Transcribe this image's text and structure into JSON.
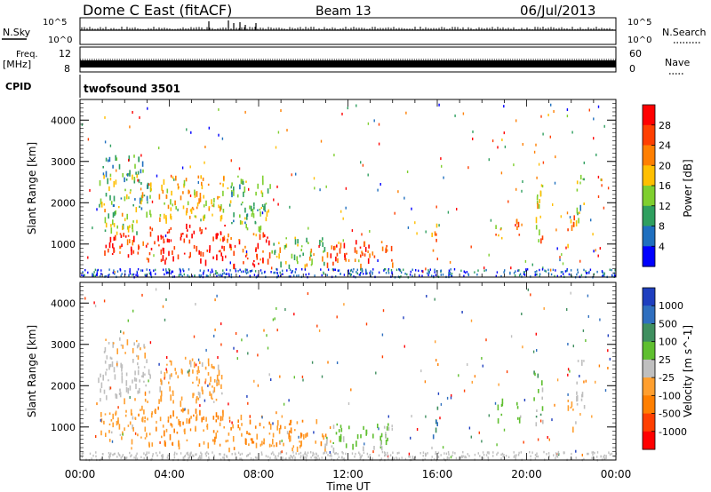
{
  "header": {
    "title": "Dome C East (fitACF)",
    "beam": "Beam 13",
    "date": "06/Jul/2013"
  },
  "sky_panel": {
    "left_label": "N.Sky",
    "left_ticks": [
      "10^5",
      "10^0"
    ],
    "right_label": "N.Search",
    "right_ticks": [
      "10^5",
      "10^0"
    ]
  },
  "freq_panel": {
    "left_label_1": "Freq.",
    "left_label_2": "[MHz]",
    "left_ticks": [
      "12",
      "8"
    ],
    "right_label": "Nave",
    "right_ticks": [
      "60",
      "0"
    ]
  },
  "cpid": {
    "label": "CPID",
    "program": "twofsound 3501"
  },
  "colors": {
    "power": [
      "#0000ff",
      "#1f6fbf",
      "#2f9f5f",
      "#7fcf2f",
      "#ffbf00",
      "#ff7f00",
      "#ff3f00",
      "#ff0000"
    ],
    "velocity": [
      "#1f3fbf",
      "#2f6fbf",
      "#3f8f5f",
      "#5fbf2f",
      "#bfbfbf",
      "#ff9f2f",
      "#ff7f00",
      "#ff3f00",
      "#ff0000"
    ]
  },
  "chart_data": [
    {
      "type": "heatmap",
      "name": "power",
      "xlabel": "Time UT",
      "ylabel": "Slant Range [km]",
      "x_ticks": [
        "00:00",
        "04:00",
        "08:00",
        "12:00",
        "16:00",
        "20:00",
        "00:00"
      ],
      "xlim": [
        0,
        24
      ],
      "ylim": [
        200,
        4500
      ],
      "y_ticks": [
        1000,
        2000,
        3000,
        4000
      ],
      "colorbar_label": "Power [dB]",
      "colorbar_ticks": [
        "28",
        "24",
        "20",
        "16",
        "12",
        "8",
        "4"
      ],
      "colorbar_range": [
        0,
        32
      ],
      "regions": [
        {
          "t": [
            0.9,
            3.0
          ],
          "r": [
            700,
            1300
          ],
          "v": [
            22,
            32
          ]
        },
        {
          "t": [
            0.9,
            3.0
          ],
          "r": [
            1300,
            1700
          ],
          "v": [
            10,
            20
          ]
        },
        {
          "t": [
            0.8,
            3.2
          ],
          "r": [
            1700,
            2700
          ],
          "v": [
            6,
            22
          ]
        },
        {
          "t": [
            1.0,
            3.0
          ],
          "r": [
            2700,
            3200
          ],
          "v": [
            4,
            16
          ]
        },
        {
          "t": [
            3.0,
            6.5
          ],
          "r": [
            600,
            1500
          ],
          "v": [
            24,
            32
          ]
        },
        {
          "t": [
            3.5,
            6.5
          ],
          "r": [
            1600,
            2700
          ],
          "v": [
            14,
            24
          ]
        },
        {
          "t": [
            6.5,
            8.5
          ],
          "r": [
            500,
            1300
          ],
          "v": [
            22,
            32
          ]
        },
        {
          "t": [
            6.5,
            8.5
          ],
          "r": [
            1400,
            2700
          ],
          "v": [
            6,
            18
          ]
        },
        {
          "t": [
            8.5,
            11.0
          ],
          "r": [
            500,
            1200
          ],
          "v": [
            8,
            22
          ]
        },
        {
          "t": [
            11.0,
            14.0
          ],
          "r": [
            500,
            1100
          ],
          "v": [
            20,
            30
          ]
        },
        {
          "t": [
            15.7,
            16.0
          ],
          "r": [
            800,
            1600
          ],
          "v": [
            16,
            28
          ]
        },
        {
          "t": [
            18.5,
            18.9
          ],
          "r": [
            1100,
            1700
          ],
          "v": [
            14,
            26
          ]
        },
        {
          "t": [
            19.5,
            19.8
          ],
          "r": [
            1000,
            1700
          ],
          "v": [
            16,
            28
          ]
        },
        {
          "t": [
            20.3,
            20.7
          ],
          "r": [
            1100,
            2500
          ],
          "v": [
            12,
            26
          ]
        },
        {
          "t": [
            21.8,
            22.2
          ],
          "r": [
            1000,
            1700
          ],
          "v": [
            14,
            28
          ]
        },
        {
          "t": [
            22.2,
            22.6
          ],
          "r": [
            1500,
            2700
          ],
          "v": [
            6,
            22
          ]
        }
      ]
    },
    {
      "type": "heatmap",
      "name": "velocity",
      "xlabel": "Time UT",
      "ylabel": "Slant Range [km]",
      "x_ticks": [
        "00:00",
        "04:00",
        "08:00",
        "12:00",
        "16:00",
        "20:00",
        "00:00"
      ],
      "xlim": [
        0,
        24
      ],
      "ylim": [
        200,
        4500
      ],
      "y_ticks": [
        1000,
        2000,
        3000,
        4000
      ],
      "colorbar_label": "Velocity [m s^-1]",
      "colorbar_ticks": [
        "1000",
        "500",
        "100",
        "25",
        "-25",
        "-100",
        "-500",
        "-1000"
      ],
      "colorbar_range": [
        -1200,
        1200
      ],
      "regions": [
        {
          "t": [
            0.9,
            3.0
          ],
          "r": [
            700,
            1700
          ],
          "v": [
            -400,
            -100
          ]
        },
        {
          "t": [
            0.8,
            3.2
          ],
          "r": [
            1700,
            2700
          ],
          "v": [
            -60,
            30
          ]
        },
        {
          "t": [
            1.0,
            3.0
          ],
          "r": [
            2700,
            3200
          ],
          "v": [
            -300,
            -50
          ]
        },
        {
          "t": [
            3.0,
            6.5
          ],
          "r": [
            600,
            1500
          ],
          "v": [
            -600,
            -150
          ]
        },
        {
          "t": [
            3.5,
            6.5
          ],
          "r": [
            1600,
            2700
          ],
          "v": [
            -400,
            -80
          ]
        },
        {
          "t": [
            6.5,
            8.5
          ],
          "r": [
            500,
            1300
          ],
          "v": [
            -700,
            -200
          ]
        },
        {
          "t": [
            8.5,
            11.0
          ],
          "r": [
            500,
            1200
          ],
          "v": [
            -500,
            -100
          ]
        },
        {
          "t": [
            11.0,
            14.0
          ],
          "r": [
            500,
            1100
          ],
          "v": [
            50,
            300
          ]
        },
        {
          "t": [
            15.7,
            16.0
          ],
          "r": [
            800,
            1600
          ],
          "v": [
            400,
            900
          ]
        },
        {
          "t": [
            18.5,
            18.9
          ],
          "r": [
            1100,
            1700
          ],
          "v": [
            100,
            400
          ]
        },
        {
          "t": [
            19.5,
            19.8
          ],
          "r": [
            1000,
            1700
          ],
          "v": [
            100,
            400
          ]
        },
        {
          "t": [
            20.3,
            20.7
          ],
          "r": [
            1100,
            2500
          ],
          "v": [
            100,
            500
          ]
        },
        {
          "t": [
            21.8,
            22.2
          ],
          "r": [
            1000,
            1700
          ],
          "v": [
            -300,
            -100
          ]
        },
        {
          "t": [
            22.2,
            22.6
          ],
          "r": [
            1500,
            2700
          ],
          "v": [
            -100,
            100
          ]
        }
      ]
    }
  ]
}
